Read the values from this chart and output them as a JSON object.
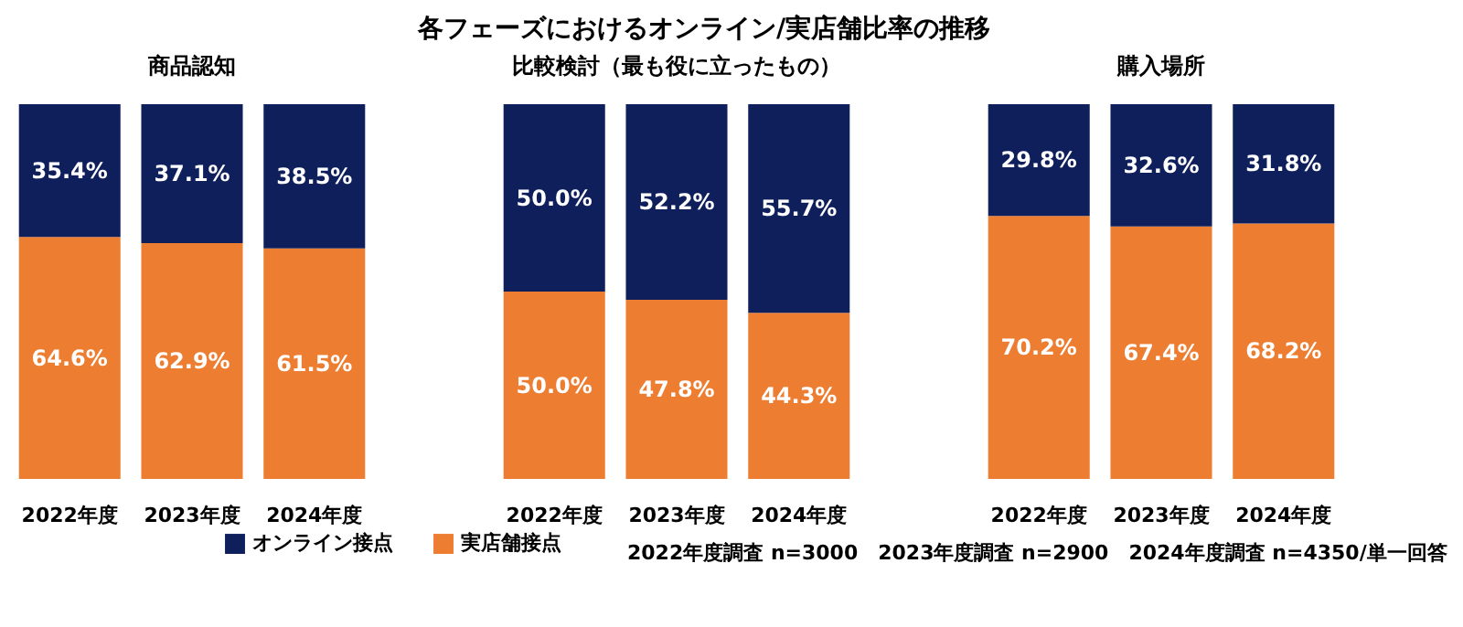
{
  "chart_data": [
    {
      "type": "other",
      "title": "各フェーズにおけるオンライン/実店舗比率の推移",
      "annotations": [
        "2022年度調査 n=3000　2023年度調査 n=2900　2024年度調査 n=4350/単一回答"
      ]
    },
    {
      "type": "bar",
      "title": "商品認知",
      "stacked": true,
      "categories": [
        "2022年度",
        "2023年度",
        "2024年度"
      ],
      "tick_labels": "x",
      "legend": "bottom",
      "series": [
        {
          "name": "実店舗接点",
          "color": "#ed7d31",
          "values": [
            64.6,
            62.9,
            61.5
          ],
          "value_labels": [
            "64.6%",
            "62.9%",
            "61.5%"
          ]
        },
        {
          "name": "オンライン接点",
          "color": "#0e1f5b",
          "values": [
            35.4,
            37.1,
            38.5
          ],
          "value_labels": [
            "35.4%",
            "37.1%",
            "38.5%"
          ]
        }
      ]
    },
    {
      "type": "bar",
      "title": "比較検討（最も役に立ったもの）",
      "stacked": true,
      "categories": [
        "2022年度",
        "2023年度",
        "2024年度"
      ],
      "tick_labels": "x",
      "legend": "bottom",
      "series": [
        {
          "name": "実店舗接点",
          "color": "#ed7d31",
          "values": [
            50.0,
            47.8,
            44.3
          ],
          "value_labels": [
            "50.0%",
            "47.8%",
            "44.3%"
          ]
        },
        {
          "name": "オンライン接点",
          "color": "#0e1f5b",
          "values": [
            50.0,
            52.2,
            55.7
          ],
          "value_labels": [
            "50.0%",
            "52.2%",
            "55.7%"
          ]
        }
      ]
    },
    {
      "type": "bar",
      "title": "購入場所",
      "stacked": true,
      "categories": [
        "2022年度",
        "2023年度",
        "2024年度"
      ],
      "tick_labels": "x",
      "legend": "bottom",
      "series": [
        {
          "name": "実店舗接点",
          "color": "#ed7d31",
          "values": [
            70.2,
            67.4,
            68.2
          ],
          "value_labels": [
            "70.2%",
            "67.4%",
            "68.2%"
          ]
        },
        {
          "name": "オンライン接点",
          "color": "#0e1f5b",
          "values": [
            29.8,
            32.6,
            31.8
          ],
          "value_labels": [
            "29.8%",
            "32.6%",
            "31.8%"
          ]
        }
      ]
    }
  ]
}
